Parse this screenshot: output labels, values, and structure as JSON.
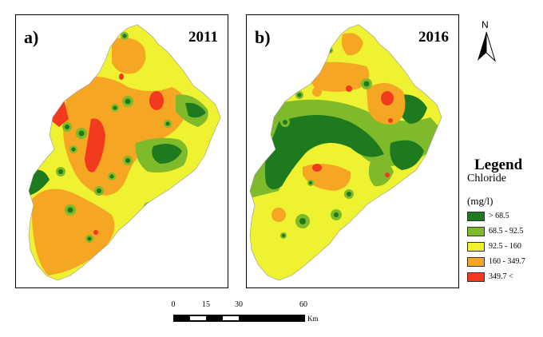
{
  "panels": [
    {
      "label": "a)",
      "year": "2011"
    },
    {
      "label": "b)",
      "year": "2016"
    }
  ],
  "north": {
    "letter": "N"
  },
  "legend": {
    "title": "Legend",
    "variable": "Chloride",
    "unit": "(mg/l)",
    "classes": [
      {
        "label": "> 68.5",
        "color": "#1e7a1e"
      },
      {
        "label": "68.5 - 92.5",
        "color": "#7fba2a"
      },
      {
        "label": "92.5 - 160",
        "color": "#eef230"
      },
      {
        "label": "160 - 349.7",
        "color": "#f5a623"
      },
      {
        "label": "349.7 <",
        "color": "#f23a1e"
      }
    ]
  },
  "scale": {
    "ticks": [
      "0",
      "15",
      "30",
      "60"
    ],
    "unit": "Km"
  }
}
